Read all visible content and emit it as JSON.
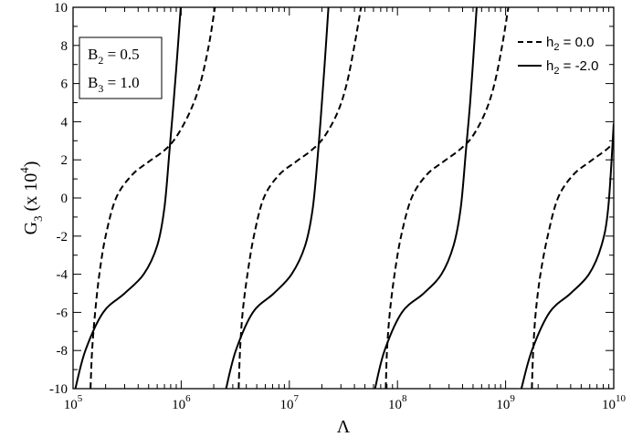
{
  "chart_data": {
    "type": "line",
    "xscale": "log",
    "xlim": [
      100000,
      10000000000
    ],
    "ylim": [
      -10,
      10
    ],
    "x_tick_values": [
      100000,
      1000000,
      10000000,
      100000000,
      1000000000,
      10000000000
    ],
    "x_tick_labels": [
      {
        "base": "10",
        "exp": "5"
      },
      {
        "base": "10",
        "exp": "6"
      },
      {
        "base": "10",
        "exp": "7"
      },
      {
        "base": "10",
        "exp": "8"
      },
      {
        "base": "10",
        "exp": "9"
      },
      {
        "base": "10",
        "exp": "10"
      }
    ],
    "y_ticks": [
      -10,
      -8,
      -6,
      -4,
      -2,
      0,
      2,
      4,
      6,
      8,
      10
    ],
    "xlabel": "Λ",
    "ylabel": {
      "main": "G",
      "sub": "3",
      "paren_open": " (x 10",
      "sup": "4",
      "paren_close": ")"
    },
    "param_box": {
      "lines": [
        {
          "base": "B",
          "sub": "2",
          "value": " = 0.5"
        },
        {
          "base": "B",
          "sub": "3",
          "value": " = 1.0"
        }
      ]
    },
    "legend_position": "top-right",
    "series": [
      {
        "name": "h₂ = 0.0",
        "legend": {
          "base": "h",
          "sub": "2",
          "value": " = 0.0"
        },
        "style": "dashed",
        "branches": [
          [
            [
              145000,
              -10
            ],
            [
              150000,
              -8
            ],
            [
              160000,
              -6
            ],
            [
              175000,
              -4
            ],
            [
              200000,
              -2
            ],
            [
              250000,
              0
            ],
            [
              350000,
              1.2
            ],
            [
              500000,
              1.9
            ],
            [
              700000,
              2.5
            ],
            [
              900000,
              3.2
            ],
            [
              1200000,
              4.5
            ],
            [
              1500000,
              6
            ],
            [
              1800000,
              8
            ],
            [
              2050000,
              10
            ]
          ],
          [
            [
              3400000,
              -10
            ],
            [
              3500000,
              -8
            ],
            [
              3700000,
              -6
            ],
            [
              4100000,
              -4
            ],
            [
              4700000,
              -2
            ],
            [
              5800000,
              0
            ],
            [
              8000000,
              1.2
            ],
            [
              11500000,
              1.9
            ],
            [
              16000000,
              2.5
            ],
            [
              21000000,
              3.2
            ],
            [
              28000000,
              4.5
            ],
            [
              34000000,
              6
            ],
            [
              40000000,
              8
            ],
            [
              46000000,
              10
            ]
          ],
          [
            [
              78000000,
              -10
            ],
            [
              80000000,
              -8
            ],
            [
              85000000,
              -6
            ],
            [
              94000000,
              -4
            ],
            [
              108000000,
              -2
            ],
            [
              135000000,
              0
            ],
            [
              185000000,
              1.2
            ],
            [
              265000000,
              1.9
            ],
            [
              370000000,
              2.5
            ],
            [
              490000000,
              3.2
            ],
            [
              650000000,
              4.5
            ],
            [
              790000000,
              6
            ],
            [
              930000000,
              8
            ],
            [
              1060000000,
              10
            ]
          ],
          [
            [
              1750000000,
              -10
            ],
            [
              1800000000,
              -8
            ],
            [
              1900000000,
              -6
            ],
            [
              2100000000,
              -4
            ],
            [
              2450000000,
              -2
            ],
            [
              3050000000,
              0
            ],
            [
              4200000000,
              1.2
            ],
            [
              6000000000,
              1.9
            ],
            [
              8400000000,
              2.5
            ],
            [
              10000000000,
              2.9
            ]
          ]
        ]
      },
      {
        "name": "h₂ = -2.0",
        "legend": {
          "base": "h",
          "sub": "2",
          "value": " = -2.0"
        },
        "style": "solid",
        "branches": [
          [
            [
              105000,
              -10
            ],
            [
              130000,
              -8
            ],
            [
              190000,
              -6
            ],
            [
              300000,
              -5
            ],
            [
              450000,
              -4
            ],
            [
              600000,
              -2.5
            ],
            [
              700000,
              -0.5
            ],
            [
              780000,
              2.5
            ],
            [
              850000,
              5
            ],
            [
              920000,
              7.5
            ],
            [
              990000,
              10
            ]
          ],
          [
            [
              2600000,
              -10
            ],
            [
              3200000,
              -8
            ],
            [
              4600000,
              -6
            ],
            [
              7200000,
              -5
            ],
            [
              10500000,
              -4
            ],
            [
              14000000,
              -2.5
            ],
            [
              16500000,
              -0.5
            ],
            [
              18500000,
              2.5
            ],
            [
              20000000,
              5
            ],
            [
              21500000,
              7.5
            ],
            [
              23000000,
              10
            ]
          ],
          [
            [
              62000000,
              -10
            ],
            [
              76000000,
              -8
            ],
            [
              110000000,
              -6
            ],
            [
              175000000,
              -5
            ],
            [
              255000000,
              -4
            ],
            [
              330000000,
              -2.5
            ],
            [
              385000000,
              -0.5
            ],
            [
              430000000,
              2.5
            ],
            [
              470000000,
              5
            ],
            [
              505000000,
              7.5
            ],
            [
              540000000,
              10
            ]
          ],
          [
            [
              1400000000,
              -10
            ],
            [
              1750000000,
              -8
            ],
            [
              2550000000,
              -6
            ],
            [
              4000000000,
              -5
            ],
            [
              5900000000,
              -4
            ],
            [
              7700000000,
              -2.5
            ],
            [
              8900000000,
              -0.5
            ],
            [
              10000000000,
              3.9
            ]
          ]
        ]
      }
    ]
  }
}
